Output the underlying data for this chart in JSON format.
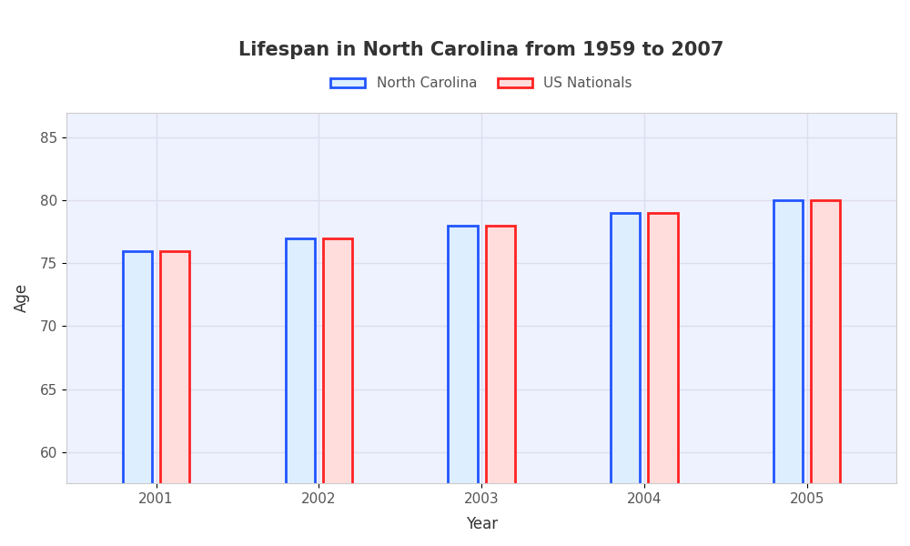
{
  "title": "Lifespan in North Carolina from 1959 to 2007",
  "xlabel": "Year",
  "ylabel": "Age",
  "years": [
    2001,
    2002,
    2003,
    2004,
    2005
  ],
  "nc_values": [
    76,
    77,
    78,
    79,
    80
  ],
  "us_values": [
    76,
    77,
    78,
    79,
    80
  ],
  "ylim": [
    57.5,
    87
  ],
  "yticks": [
    60,
    65,
    70,
    75,
    80,
    85
  ],
  "bar_width": 0.18,
  "nc_face_color": "#ddeeff",
  "nc_edge_color": "#2255ff",
  "us_face_color": "#ffdddd",
  "us_edge_color": "#ff2222",
  "fig_bg_color": "#ffffff",
  "plot_bg_color": "#eef2ff",
  "grid_color": "#ddddee",
  "title_fontsize": 15,
  "label_fontsize": 12,
  "tick_fontsize": 11,
  "legend_labels": [
    "North Carolina",
    "US Nationals"
  ]
}
